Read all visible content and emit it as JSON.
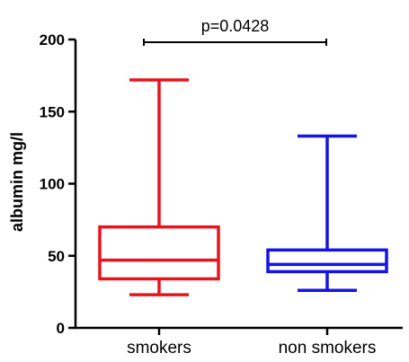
{
  "chart_data": {
    "type": "box",
    "ylabel": "albumin mg/l",
    "xlabel": "",
    "ylim": [
      0,
      200
    ],
    "yticks": [
      0,
      50,
      100,
      150,
      200
    ],
    "grid": false,
    "categories": [
      "smokers",
      "non smokers"
    ],
    "series": [
      {
        "category": "smokers",
        "color": "#e8141c",
        "min": 23,
        "q1": 34,
        "median": 47,
        "q3": 70,
        "max": 172
      },
      {
        "category": "non smokers",
        "color": "#1414e8",
        "min": 26,
        "q1": 39,
        "median": 44,
        "q3": 54,
        "max": 133
      }
    ],
    "annotation": {
      "text": "p=0.0428",
      "from": "smokers",
      "to": "non smokers",
      "y": 200
    }
  }
}
